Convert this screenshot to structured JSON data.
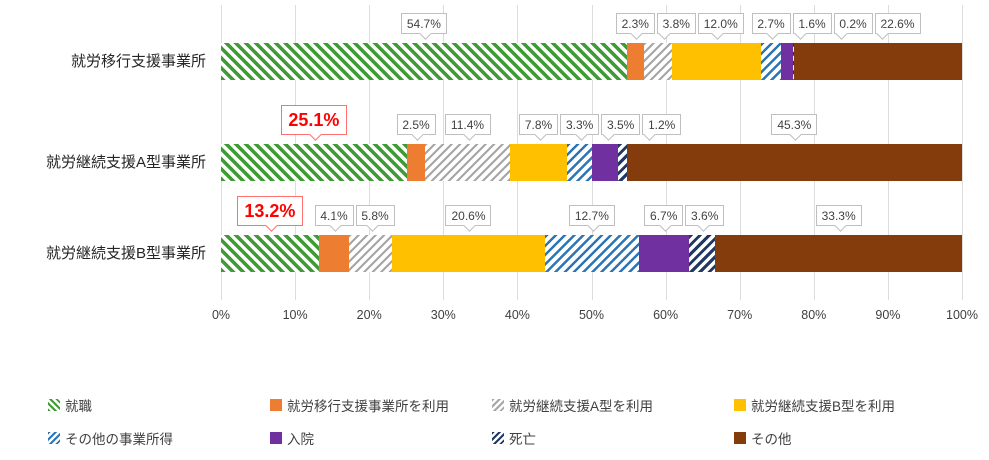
{
  "chart_data": {
    "type": "bar",
    "stacked": true,
    "horizontal": true,
    "percent_axis": true,
    "title": "",
    "categories": [
      "就労移行支援事業所",
      "就労継続支援A型事業所",
      "就労継続支援B型事業所"
    ],
    "series": [
      {
        "name": "就職",
        "color": "#3F9C35",
        "pattern": "diagonal-backslash",
        "values": [
          54.7,
          25.1,
          13.2
        ]
      },
      {
        "name": "就労移行支援事業所を利用",
        "color": "#ED7D31",
        "pattern": "solid",
        "values": [
          2.3,
          2.5,
          4.1
        ]
      },
      {
        "name": "就労継続支援A型を利用",
        "color": "#A6A6A6",
        "pattern": "diagonal-slash",
        "values": [
          3.8,
          11.4,
          5.8
        ]
      },
      {
        "name": "就労継続支援B型を利用",
        "color": "#FFC000",
        "pattern": "solid",
        "values": [
          12.0,
          7.8,
          20.6
        ]
      },
      {
        "name": "その他の事業所得",
        "color": "#2E75B6",
        "pattern": "diagonal-slash",
        "values": [
          2.7,
          3.3,
          12.7
        ]
      },
      {
        "name": "入院",
        "color": "#7030A0",
        "pattern": "solid",
        "values": [
          1.6,
          3.5,
          6.7
        ]
      },
      {
        "name": "死亡",
        "color": "#1F3864",
        "pattern": "diagonal-slash",
        "values": [
          0.2,
          1.2,
          3.6
        ]
      },
      {
        "name": "その他",
        "color": "#843C0C",
        "pattern": "solid",
        "values": [
          22.6,
          45.3,
          33.3
        ]
      }
    ],
    "data_labels": {
      "rows": [
        [
          "54.7%",
          "2.3%",
          "3.8%",
          "12.0%",
          "2.7%",
          "1.6%",
          "0.2%",
          "22.6%"
        ],
        [
          "25.1%",
          "2.5%",
          "11.4%",
          "7.8%",
          "3.3%",
          "3.5%",
          "1.2%",
          "45.3%"
        ],
        [
          "13.2%",
          "4.1%",
          "5.8%",
          "20.6%",
          "12.7%",
          "6.7%",
          "3.6%",
          "33.3%"
        ]
      ],
      "emphasized": [
        {
          "row": 1,
          "series": 0,
          "label": "25.1%"
        },
        {
          "row": 2,
          "series": 0,
          "label": "13.2%"
        }
      ]
    },
    "x_axis": {
      "min": 0,
      "max": 100,
      "ticks": [
        "0%",
        "10%",
        "20%",
        "30%",
        "40%",
        "50%",
        "60%",
        "70%",
        "80%",
        "90%",
        "100%"
      ]
    },
    "legend": {
      "position": "bottom",
      "rows": 2,
      "columns": 4
    },
    "grid": true,
    "colors": {
      "emphasis_label": "#FF0000",
      "emphasis_border": "#FF7070",
      "callout_border": "#BFBFBF",
      "callout_text": "#404040",
      "gridline": "#DCDCDC",
      "axis_text": "#3F3F3F",
      "category_text": "#262626",
      "legend_text": "#404040"
    }
  }
}
